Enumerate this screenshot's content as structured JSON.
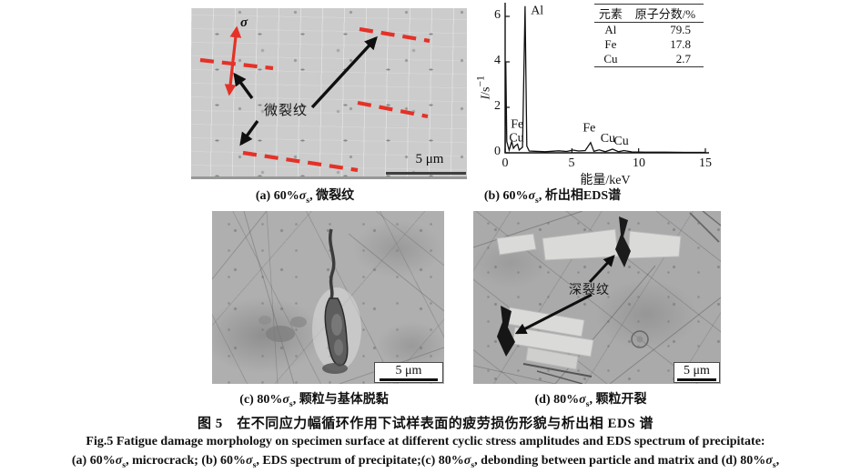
{
  "figure": {
    "panels": {
      "a": {
        "caption_segments": [
          {
            "t": "(a) 60%"
          },
          {
            "t": "σ",
            "it": true
          },
          {
            "t": "s",
            "sub": true
          },
          {
            "t": ", 微裂纹"
          }
        ],
        "sigma_label": "σ",
        "crack_label": "微裂纹",
        "scale_label": "5 μm"
      },
      "b": {
        "caption_segments": [
          {
            "t": "(b) 60%"
          },
          {
            "t": "σ",
            "it": true
          },
          {
            "t": "s",
            "sub": true
          },
          {
            "t": ", 析出相EDS谱"
          }
        ]
      },
      "c": {
        "caption_segments": [
          {
            "t": "(c) 80%"
          },
          {
            "t": "σ",
            "it": true
          },
          {
            "t": "s",
            "sub": true
          },
          {
            "t": ", 颗粒与基体脱黏"
          }
        ],
        "scale_label": "5 μm"
      },
      "d": {
        "caption_segments": [
          {
            "t": "(d) 80%"
          },
          {
            "t": "σ",
            "it": true
          },
          {
            "t": "s",
            "sub": true
          },
          {
            "t": ", 颗粒开裂"
          }
        ],
        "crack_label": "深裂纹",
        "scale_label": "5 μm"
      }
    },
    "caption_cn": "图 5　在不同应力幅循环作用下试样表面的疲劳损伤形貌与析出相 EDS 谱",
    "caption_en": "Fig.5 Fatigue damage morphology on specimen surface at different cyclic stress amplitudes and EDS spectrum of precipitate:",
    "caption_line3_segments": [
      {
        "t": "(a) 60%"
      },
      {
        "t": "σ",
        "it": true
      },
      {
        "t": "s",
        "sub": true
      },
      {
        "t": ", microcrack; (b) 60%"
      },
      {
        "t": "σ",
        "it": true
      },
      {
        "t": "s",
        "sub": true
      },
      {
        "t": ", EDS spectrum of precipitate;(c) 80%"
      },
      {
        "t": "σ",
        "it": true
      },
      {
        "t": "s",
        "sub": true
      },
      {
        "t": ", debonding between particle and matrix and (d) 80%"
      },
      {
        "t": "σ",
        "it": true
      },
      {
        "t": "s",
        "sub": true
      },
      {
        "t": ","
      }
    ]
  },
  "chart_data": {
    "type": "line",
    "title": "",
    "xlabel": "能量/keV",
    "ylabel": "I/s⁻¹",
    "ylabel_segments": [
      {
        "t": "I",
        "it": true
      },
      {
        "t": "/s"
      },
      {
        "t": "−1",
        "sup": true
      }
    ],
    "xlim": [
      0,
      15
    ],
    "ylim": [
      0,
      6.6
    ],
    "x_ticks": [
      0,
      5,
      10,
      15
    ],
    "y_ticks": [
      0,
      2,
      4,
      6
    ],
    "grid": false,
    "legend": "none",
    "series": [
      {
        "name": "EDS spectrum of precipitate",
        "points": [
          [
            0,
            0
          ],
          [
            0.05,
            4.0
          ],
          [
            0.12,
            0.5
          ],
          [
            0.3,
            0.12
          ],
          [
            0.5,
            0.5
          ],
          [
            0.62,
            0.2
          ],
          [
            0.75,
            0.3
          ],
          [
            0.93,
            0.38
          ],
          [
            1.05,
            0.12
          ],
          [
            1.3,
            0.25
          ],
          [
            1.49,
            6.45
          ],
          [
            1.62,
            0.3
          ],
          [
            1.8,
            0.08
          ],
          [
            2.2,
            0.07
          ],
          [
            3.0,
            0.05
          ],
          [
            4.0,
            0.09
          ],
          [
            4.6,
            0.06
          ],
          [
            5.1,
            0.12
          ],
          [
            5.5,
            0.08
          ],
          [
            6.0,
            0.1
          ],
          [
            6.4,
            0.45
          ],
          [
            6.65,
            0.07
          ],
          [
            7.05,
            0.13
          ],
          [
            7.5,
            0.05
          ],
          [
            8.05,
            0.16
          ],
          [
            8.5,
            0.05
          ],
          [
            8.9,
            0.1
          ],
          [
            9.5,
            0.04
          ],
          [
            10.5,
            0.03
          ],
          [
            12,
            0.03
          ],
          [
            13.5,
            0.02
          ],
          [
            15,
            0.02
          ]
        ]
      }
    ],
    "peak_labels": [
      {
        "text": "Al",
        "x": 2.4,
        "y": 6.1
      },
      {
        "text": "Fe",
        "x": 0.9,
        "y": 1.1
      },
      {
        "text": "Cu",
        "x": 0.85,
        "y": 0.5
      },
      {
        "text": "Fe",
        "x": 6.3,
        "y": 0.95
      },
      {
        "text": "Cu",
        "x": 7.7,
        "y": 0.48
      },
      {
        "text": "Cu",
        "x": 8.7,
        "y": 0.36
      }
    ],
    "inset_table": {
      "headers": [
        "元素",
        "原子分数/%"
      ],
      "rows": [
        [
          "Al",
          "79.5"
        ],
        [
          "Fe",
          "17.8"
        ],
        [
          "Cu",
          "2.7"
        ]
      ]
    }
  },
  "colors": {
    "annotation_red": "#e53128",
    "ink": "#111111"
  }
}
